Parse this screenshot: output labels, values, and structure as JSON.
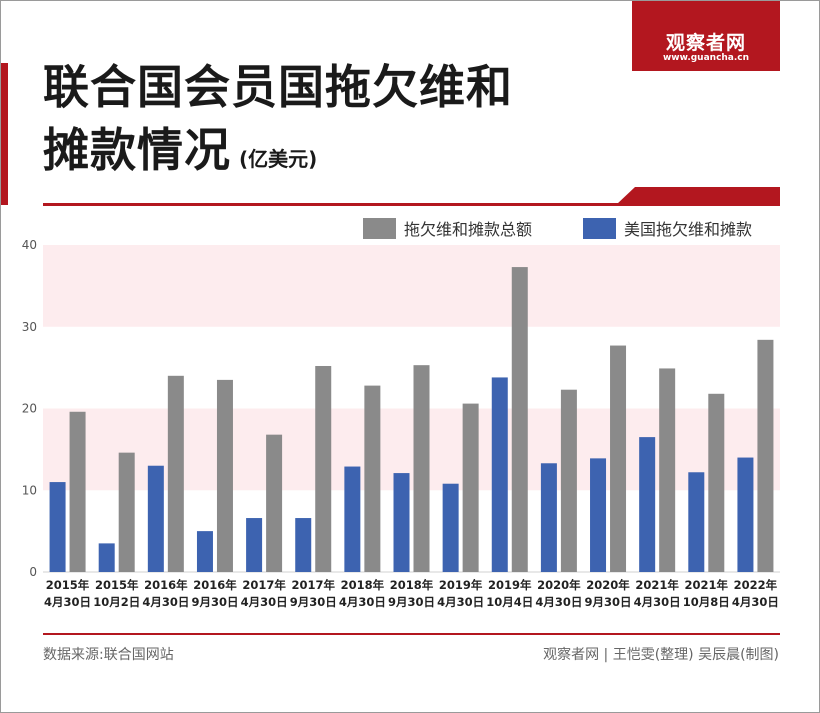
{
  "brand": {
    "name": "观察者网",
    "url": "www.guancha.cn",
    "color": "#b3171f"
  },
  "title": {
    "line1": "联合国会员国拖欠维和",
    "line2": "摊款情况",
    "unit": "(亿美元)"
  },
  "footer": {
    "source": "数据来源:联合国网站",
    "credit": "观察者网 | 王恺雯(整理)  吴辰晨(制图)"
  },
  "chart_data": {
    "type": "bar",
    "categories": [
      [
        "2015年",
        "4月30日"
      ],
      [
        "2015年",
        "10月2日"
      ],
      [
        "2016年",
        "4月30日"
      ],
      [
        "2016年",
        "9月30日"
      ],
      [
        "2017年",
        "4月30日"
      ],
      [
        "2017年",
        "9月30日"
      ],
      [
        "2018年",
        "4月30日"
      ],
      [
        "2018年",
        "9月30日"
      ],
      [
        "2019年",
        "4月30日"
      ],
      [
        "2019年",
        "10月4日"
      ],
      [
        "2020年",
        "4月30日"
      ],
      [
        "2020年",
        "9月30日"
      ],
      [
        "2021年",
        "4月30日"
      ],
      [
        "2021年",
        "10月8日"
      ],
      [
        "2022年",
        "4月30日"
      ]
    ],
    "series": [
      {
        "name": "美国拖欠维和摊款",
        "color": "#3d63b0",
        "values": [
          11.0,
          3.5,
          13.0,
          5.0,
          6.6,
          6.6,
          12.9,
          12.1,
          10.8,
          23.8,
          13.3,
          13.9,
          16.5,
          12.2,
          14.0
        ]
      },
      {
        "name": "拖欠维和摊款总额",
        "color": "#8a8a8a",
        "values": [
          19.6,
          14.6,
          24.0,
          23.5,
          16.8,
          25.2,
          22.8,
          25.3,
          20.6,
          37.3,
          22.3,
          27.7,
          24.9,
          21.8,
          28.4
        ]
      }
    ],
    "legend_order": [
      "拖欠维和摊款总额",
      "美国拖欠维和摊款"
    ],
    "yticks": [
      0,
      10,
      20,
      30,
      40
    ],
    "ylim": [
      0,
      40
    ],
    "band_color": "#fdecee",
    "bands": [
      [
        10,
        20
      ],
      [
        30,
        40
      ]
    ],
    "legend_position": "top-right"
  }
}
